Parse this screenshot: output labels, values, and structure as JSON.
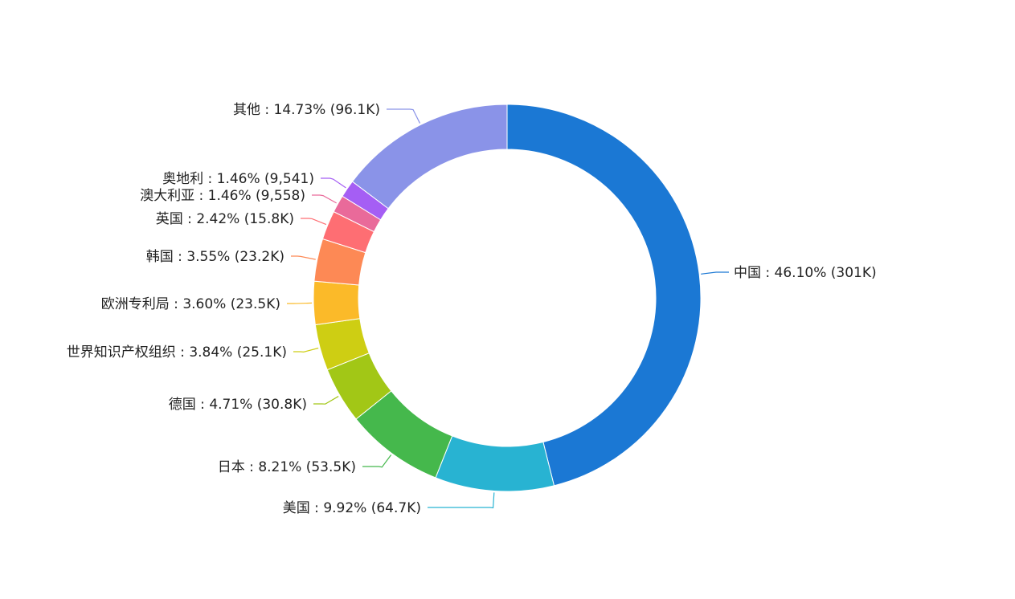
{
  "chart_data": {
    "type": "pie",
    "donut": true,
    "title": "",
    "start": "top",
    "direction": "clockwise",
    "slices": [
      {
        "name": "中国",
        "percent": "46.10%",
        "count": "301K",
        "value": 46.1,
        "color": "#1b78d4",
        "label_side": "right"
      },
      {
        "name": "美国",
        "percent": "9.92%",
        "count": "64.7K",
        "value": 9.92,
        "color": "#28b3d2",
        "label_side": "left"
      },
      {
        "name": "日本",
        "percent": "8.21%",
        "count": "53.5K",
        "value": 8.21,
        "color": "#45b84c",
        "label_side": "left"
      },
      {
        "name": "德国",
        "percent": "4.71%",
        "count": "30.8K",
        "value": 4.71,
        "color": "#a2c716",
        "label_side": "left"
      },
      {
        "name": "世界知识产权组织",
        "percent": "3.84%",
        "count": "25.1K",
        "value": 3.84,
        "color": "#cece13",
        "label_side": "left"
      },
      {
        "name": "欧洲专利局",
        "percent": "3.60%",
        "count": "23.5K",
        "value": 3.6,
        "color": "#fbba29",
        "label_side": "left"
      },
      {
        "name": "韩国",
        "percent": "3.55%",
        "count": "23.2K",
        "value": 3.55,
        "color": "#fd8955",
        "label_side": "left"
      },
      {
        "name": "英国",
        "percent": "2.42%",
        "count": "15.8K",
        "value": 2.42,
        "color": "#fe6e73",
        "label_side": "left"
      },
      {
        "name": "澳大利亚",
        "percent": "1.46%",
        "count": "9,558",
        "value": 1.46,
        "color": "#e96a9a",
        "label_side": "left"
      },
      {
        "name": "奥地利",
        "percent": "1.46%",
        "count": "9,541",
        "value": 1.46,
        "color": "#a55ef4",
        "label_side": "left"
      },
      {
        "name": "其他",
        "percent": "14.73%",
        "count": "96.1K",
        "value": 14.73,
        "color": "#8a93e8",
        "label_side": "left"
      }
    ]
  }
}
